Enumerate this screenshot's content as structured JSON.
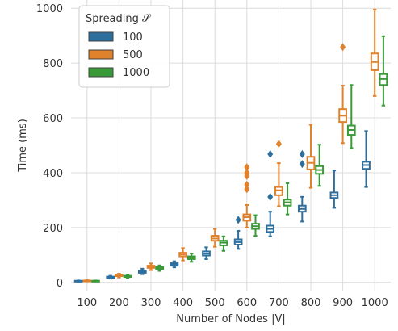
{
  "chart_data": {
    "type": "box",
    "xlabel": "Number of Nodes |V|",
    "ylabel": "Time (ms)",
    "ylim": [
      -30,
      1030
    ],
    "yticks": [
      0,
      200,
      400,
      600,
      800,
      1000
    ],
    "grid": true,
    "categories": [
      "100",
      "200",
      "300",
      "400",
      "500",
      "600",
      "700",
      "800",
      "900",
      "1000"
    ],
    "legend": {
      "title": "Spreading 𝒮",
      "placement": "top-left"
    },
    "series": [
      {
        "name": "100",
        "color": "#2e6f9e",
        "boxes": [
          {
            "min": 3,
            "q1": 4,
            "median": 5,
            "q3": 6,
            "max": 7,
            "outliers": []
          },
          {
            "min": 14,
            "q1": 17,
            "median": 19,
            "q3": 21,
            "max": 24,
            "outliers": []
          },
          {
            "min": 30,
            "q1": 35,
            "median": 39,
            "q3": 43,
            "max": 50,
            "outliers": []
          },
          {
            "min": 55,
            "q1": 61,
            "median": 65,
            "q3": 70,
            "max": 77,
            "outliers": []
          },
          {
            "min": 85,
            "q1": 98,
            "median": 105,
            "q3": 113,
            "max": 128,
            "outliers": []
          },
          {
            "min": 122,
            "q1": 138,
            "median": 147,
            "q3": 157,
            "max": 188,
            "outliers": [
              228
            ]
          },
          {
            "min": 168,
            "q1": 184,
            "median": 195,
            "q3": 207,
            "max": 258,
            "outliers": [
              312,
              468
            ]
          },
          {
            "min": 222,
            "q1": 258,
            "median": 268,
            "q3": 280,
            "max": 312,
            "outliers": [
              432,
              468
            ]
          },
          {
            "min": 272,
            "q1": 308,
            "median": 318,
            "q3": 328,
            "max": 408,
            "outliers": []
          },
          {
            "min": 348,
            "q1": 414,
            "median": 428,
            "q3": 440,
            "max": 552,
            "outliers": []
          }
        ]
      },
      {
        "name": "500",
        "color": "#e0812c",
        "boxes": [
          {
            "min": 4,
            "q1": 5,
            "median": 6,
            "q3": 7,
            "max": 8,
            "outliers": []
          },
          {
            "min": 18,
            "q1": 23,
            "median": 26,
            "q3": 28,
            "max": 32,
            "outliers": []
          },
          {
            "min": 45,
            "q1": 53,
            "median": 57,
            "q3": 61,
            "max": 69,
            "outliers": []
          },
          {
            "min": 80,
            "q1": 95,
            "median": 102,
            "q3": 108,
            "max": 125,
            "outliers": []
          },
          {
            "min": 130,
            "q1": 152,
            "median": 160,
            "q3": 170,
            "max": 195,
            "outliers": []
          },
          {
            "min": 200,
            "q1": 225,
            "median": 238,
            "q3": 248,
            "max": 282,
            "outliers": [
              340,
              356,
              388,
              400,
              420
            ]
          },
          {
            "min": 278,
            "q1": 318,
            "median": 336,
            "q3": 348,
            "max": 435,
            "outliers": [
              505
            ]
          },
          {
            "min": 345,
            "q1": 412,
            "median": 436,
            "q3": 458,
            "max": 575,
            "outliers": []
          },
          {
            "min": 508,
            "q1": 585,
            "median": 608,
            "q3": 632,
            "max": 718,
            "outliers": [
              858
            ]
          },
          {
            "min": 680,
            "q1": 774,
            "median": 804,
            "q3": 835,
            "max": 995,
            "outliers": []
          }
        ]
      },
      {
        "name": "1000",
        "color": "#3a9a3a",
        "boxes": [
          {
            "min": 4,
            "q1": 5,
            "median": 6,
            "q3": 6,
            "max": 7,
            "outliers": []
          },
          {
            "min": 17,
            "q1": 20,
            "median": 22,
            "q3": 24,
            "max": 27,
            "outliers": []
          },
          {
            "min": 42,
            "q1": 49,
            "median": 53,
            "q3": 56,
            "max": 62,
            "outliers": []
          },
          {
            "min": 75,
            "q1": 85,
            "median": 90,
            "q3": 95,
            "max": 105,
            "outliers": []
          },
          {
            "min": 115,
            "q1": 135,
            "median": 145,
            "q3": 152,
            "max": 168,
            "outliers": []
          },
          {
            "min": 170,
            "q1": 195,
            "median": 205,
            "q3": 214,
            "max": 245,
            "outliers": []
          },
          {
            "min": 248,
            "q1": 280,
            "median": 292,
            "q3": 302,
            "max": 362,
            "outliers": []
          },
          {
            "min": 352,
            "q1": 396,
            "median": 410,
            "q3": 424,
            "max": 502,
            "outliers": []
          },
          {
            "min": 490,
            "q1": 538,
            "median": 556,
            "q3": 572,
            "max": 720,
            "outliers": []
          },
          {
            "min": 645,
            "q1": 720,
            "median": 742,
            "q3": 760,
            "max": 898,
            "outliers": []
          }
        ]
      }
    ]
  }
}
